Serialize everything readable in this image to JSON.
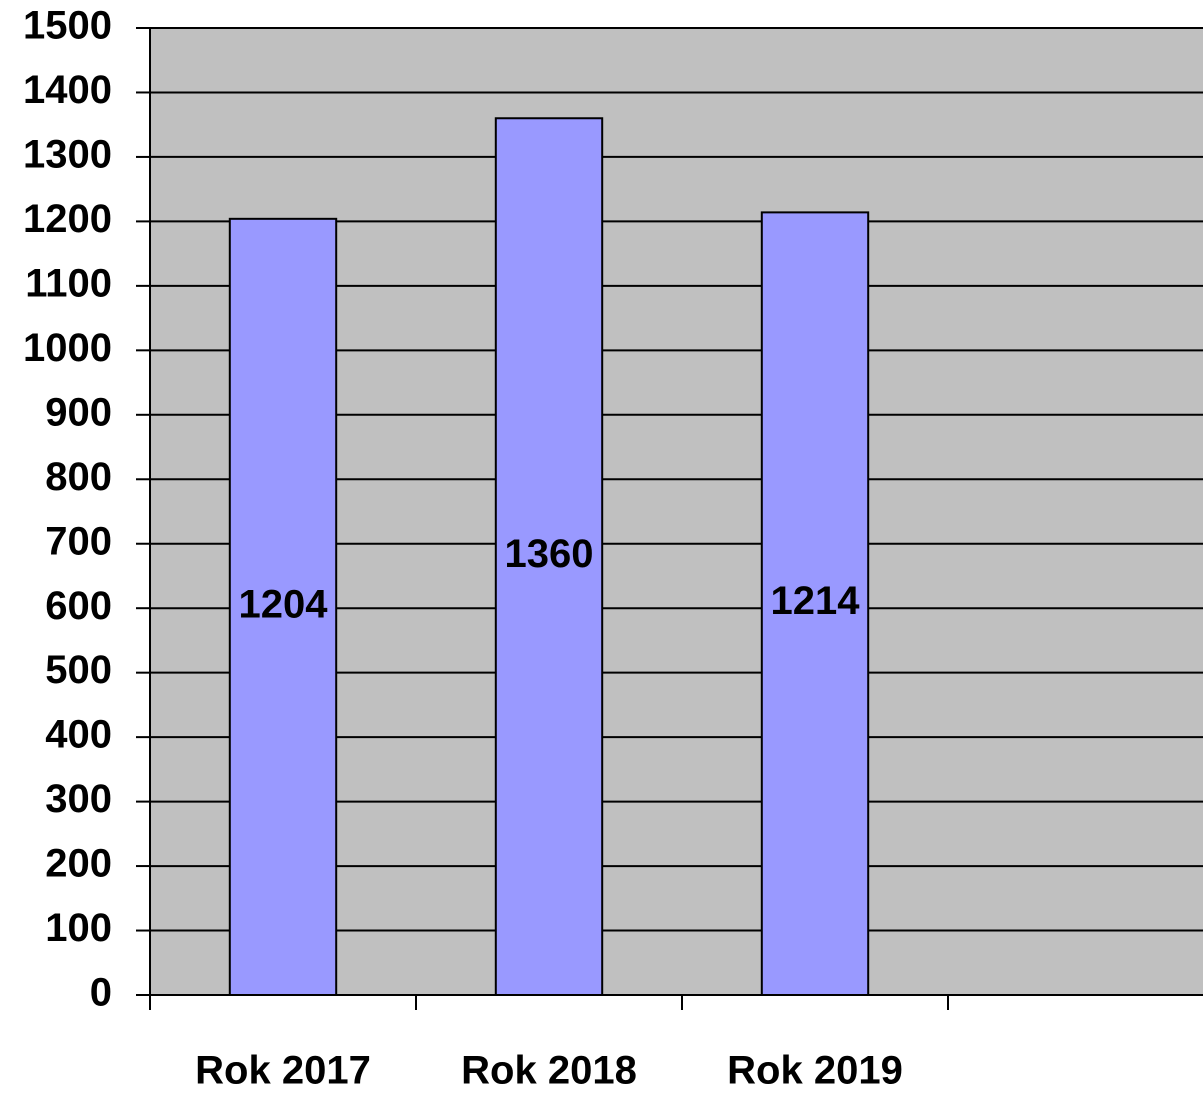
{
  "chart_data": {
    "type": "bar",
    "categories": [
      "Rok 2017",
      "Rok 2018",
      "Rok 2019",
      null
    ],
    "values": [
      1204,
      1360,
      1214,
      null
    ],
    "color": "#9999ff",
    "ylim": [
      0,
      1500
    ],
    "yticks": [
      0,
      100,
      200,
      300,
      400,
      500,
      600,
      700,
      800,
      900,
      1000,
      1100,
      1200,
      1300,
      1400,
      1500
    ],
    "grid": true,
    "background": "#c0c0c0"
  }
}
